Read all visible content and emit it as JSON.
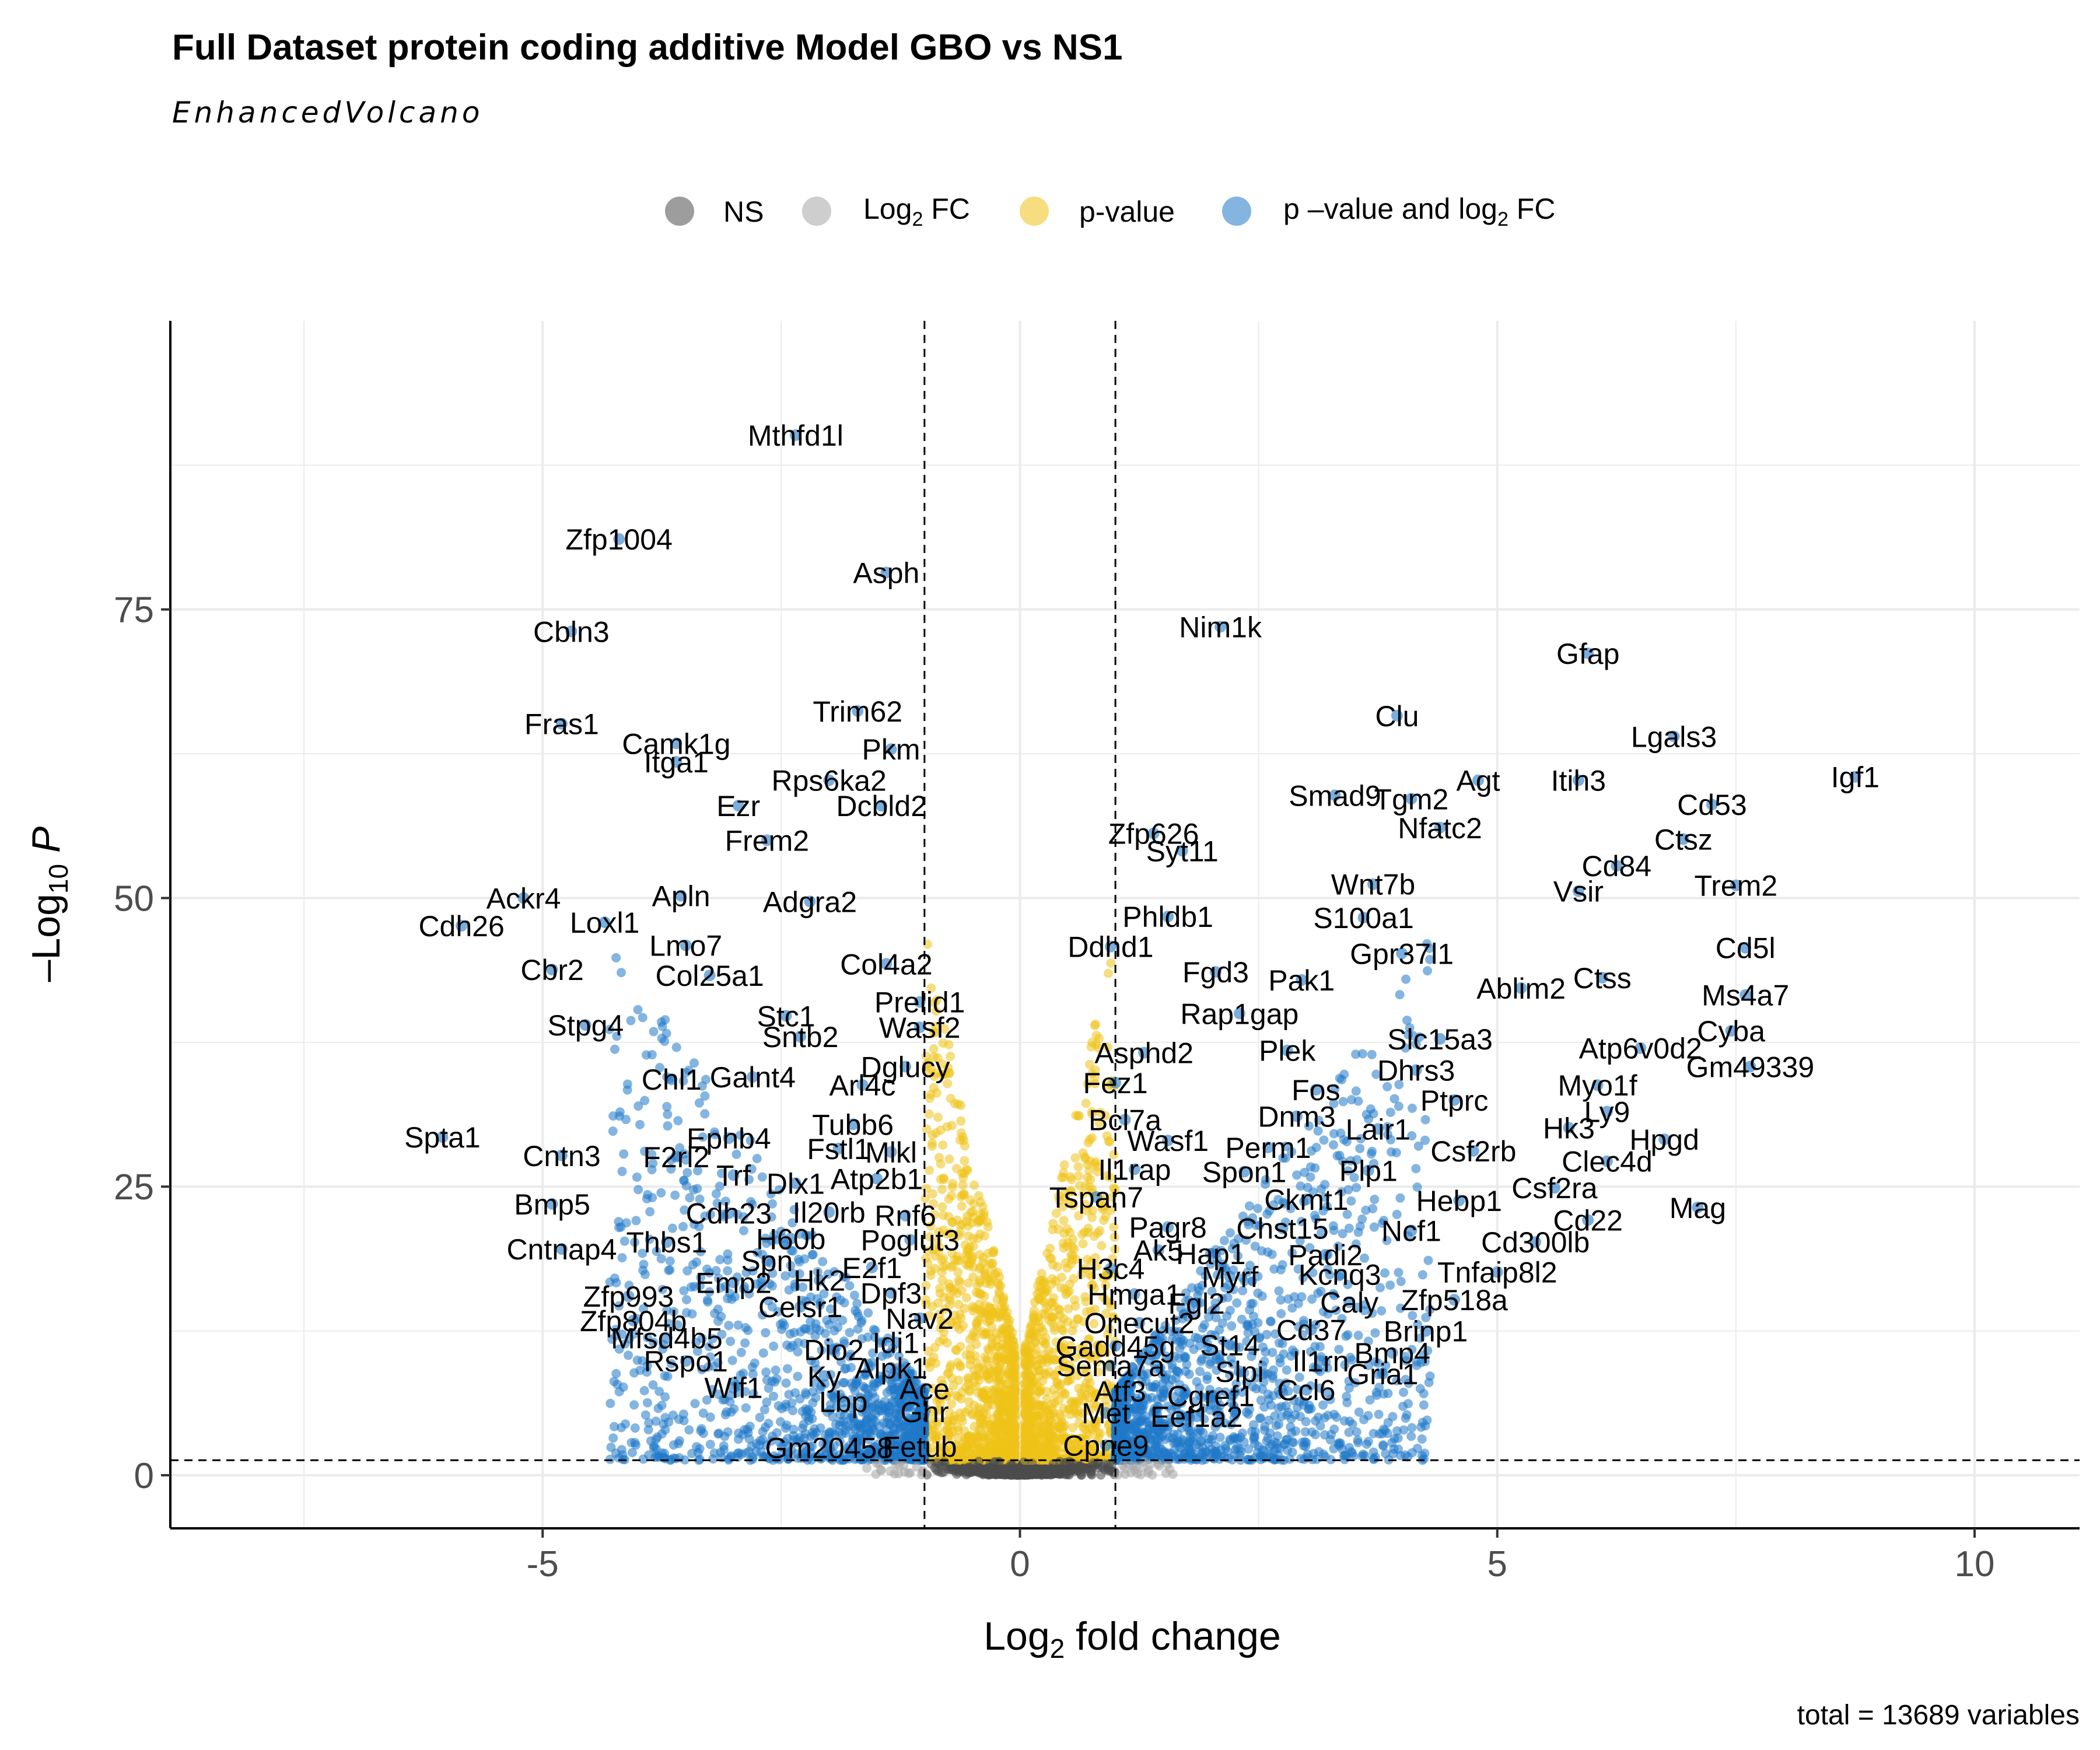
{
  "chart_data": {
    "type": "scatter",
    "title": "Full Dataset protein coding additive Model GBO vs NS1",
    "subtitle": "EnhancedVolcano",
    "xlabel": "Log2 fold change",
    "ylabel": "-Log10 P",
    "caption": "total = 13689 variables",
    "xlim": [
      -8.9,
      11.1
    ],
    "ylim": [
      -4.6,
      100
    ],
    "x_ticks": [
      -5,
      0,
      5,
      10
    ],
    "x_tick_labels": [
      "-5",
      "0",
      "5",
      "10"
    ],
    "y_ticks": [
      0,
      25,
      50,
      75
    ],
    "y_tick_labels": [
      "0",
      "25",
      "50",
      "75"
    ],
    "grid": true,
    "legend_position": "top",
    "fc_cutoff": 1,
    "p_cutoff_log10": 1.3,
    "legend": [
      {
        "label": "NS",
        "color": "#4d4d4d"
      },
      {
        "label": "Log2 FC",
        "color": "#a6a6a6"
      },
      {
        "label": "p-value",
        "color": "#eec218"
      },
      {
        "label": "p–value and log2 FC",
        "color": "#1f78c8"
      }
    ],
    "colors": {
      "ns": "#4d4d4d",
      "fc": "#a6a6a6",
      "p": "#eec218",
      "both": "#1f78c8"
    },
    "labeled_points": [
      {
        "label": "Mthfd1l",
        "x": -2.35,
        "y": 90.1
      },
      {
        "label": "Zfp1004",
        "x": -4.2,
        "y": 81.1
      },
      {
        "label": "Asph",
        "x": -1.4,
        "y": 78.2
      },
      {
        "label": "Cbln3",
        "x": -4.7,
        "y": 73.1
      },
      {
        "label": "Nim1k",
        "x": 2.1,
        "y": 73.5
      },
      {
        "label": "Gfap",
        "x": 5.95,
        "y": 71.2
      },
      {
        "label": "Fras1",
        "x": -4.8,
        "y": 65.1
      },
      {
        "label": "Trim62",
        "x": -1.7,
        "y": 66.2
      },
      {
        "label": "Clu",
        "x": 3.95,
        "y": 65.8
      },
      {
        "label": "Lgals3",
        "x": 6.85,
        "y": 64.0
      },
      {
        "label": "Camk1g",
        "x": -3.6,
        "y": 63.4
      },
      {
        "label": "Pkm",
        "x": -1.35,
        "y": 62.9
      },
      {
        "label": "Itga1",
        "x": -3.6,
        "y": 61.8
      },
      {
        "label": "Itih3",
        "x": 5.85,
        "y": 60.2
      },
      {
        "label": "Igf1",
        "x": 8.75,
        "y": 60.5
      },
      {
        "label": "Smad9",
        "x": 3.3,
        "y": 58.9
      },
      {
        "label": "Agt",
        "x": 4.8,
        "y": 60.2
      },
      {
        "label": "Rps6ka2",
        "x": -2.0,
        "y": 60.2
      },
      {
        "label": "Tgm2",
        "x": 4.1,
        "y": 58.6
      },
      {
        "label": "Cd53",
        "x": 7.25,
        "y": 58.1
      },
      {
        "label": "Ezr",
        "x": -2.95,
        "y": 58.0
      },
      {
        "label": "Dcbld2",
        "x": -1.45,
        "y": 58.0
      },
      {
        "label": "Zfp626",
        "x": 1.4,
        "y": 55.6
      },
      {
        "label": "Frem2",
        "x": -2.65,
        "y": 55.0
      },
      {
        "label": "Nfatc2",
        "x": 4.4,
        "y": 56.1
      },
      {
        "label": "Ctsz",
        "x": 6.95,
        "y": 55.1
      },
      {
        "label": "Syt11",
        "x": 1.7,
        "y": 54.1
      },
      {
        "label": "Cd84",
        "x": 6.25,
        "y": 52.8
      },
      {
        "label": "Wnt7b",
        "x": 3.7,
        "y": 51.2
      },
      {
        "label": "Vsir",
        "x": 5.85,
        "y": 50.6
      },
      {
        "label": "Trem2",
        "x": 7.5,
        "y": 51.1
      },
      {
        "label": "Apln",
        "x": -3.55,
        "y": 50.2
      },
      {
        "label": "Ackr4",
        "x": -5.2,
        "y": 50.0
      },
      {
        "label": "Adgra2",
        "x": -2.2,
        "y": 49.7
      },
      {
        "label": "Phldb1",
        "x": 1.55,
        "y": 48.4
      },
      {
        "label": "S100a1",
        "x": 3.6,
        "y": 48.3
      },
      {
        "label": "Loxl1",
        "x": -4.35,
        "y": 47.9
      },
      {
        "label": "Ddhd1",
        "x": 0.95,
        "y": 45.8
      },
      {
        "label": "Gpr37l1",
        "x": 4.0,
        "y": 45.2
      },
      {
        "label": "Cd5l",
        "x": 7.6,
        "y": 45.7
      },
      {
        "label": "Cdh26",
        "x": -5.85,
        "y": 47.6
      },
      {
        "label": "Lmo7",
        "x": -3.5,
        "y": 45.9
      },
      {
        "label": "Col4a2",
        "x": -1.4,
        "y": 44.3
      },
      {
        "label": "Fgd3",
        "x": 2.05,
        "y": 43.6
      },
      {
        "label": "Pak1",
        "x": 2.95,
        "y": 42.9
      },
      {
        "label": "Ctss",
        "x": 6.1,
        "y": 43.1
      },
      {
        "label": "Ms4a7",
        "x": 7.6,
        "y": 41.6
      },
      {
        "label": "Cbr2",
        "x": -4.9,
        "y": 43.8
      },
      {
        "label": "Col25a1",
        "x": -3.25,
        "y": 43.3
      },
      {
        "label": "Ablim2",
        "x": 5.25,
        "y": 42.2
      },
      {
        "label": "Prelid1",
        "x": -1.05,
        "y": 41.0
      },
      {
        "label": "Rap1gap",
        "x": 2.3,
        "y": 40.0
      },
      {
        "label": "Stpg4",
        "x": -4.55,
        "y": 39.0
      },
      {
        "label": "Stc1",
        "x": -2.45,
        "y": 39.8
      },
      {
        "label": "Cyba",
        "x": 7.45,
        "y": 38.5
      },
      {
        "label": "Wasf2",
        "x": -1.05,
        "y": 38.8
      },
      {
        "label": "Slc15a3",
        "x": 4.4,
        "y": 37.8
      },
      {
        "label": "Sntb2",
        "x": -2.3,
        "y": 38.0
      },
      {
        "label": "Asphd2",
        "x": 1.3,
        "y": 36.6
      },
      {
        "label": "Atp6v0d2",
        "x": 6.5,
        "y": 37.0
      },
      {
        "label": "Plek",
        "x": 2.8,
        "y": 36.8
      },
      {
        "label": "Dglucy",
        "x": -1.2,
        "y": 35.4
      },
      {
        "label": "Dhrs3",
        "x": 4.15,
        "y": 35.1
      },
      {
        "label": "Gm49339",
        "x": 7.65,
        "y": 35.4
      },
      {
        "label": "Chl1",
        "x": -3.65,
        "y": 34.3
      },
      {
        "label": "Galnt4",
        "x": -2.8,
        "y": 34.5
      },
      {
        "label": "Fez1",
        "x": 1.0,
        "y": 34.0
      },
      {
        "label": "Myo1f",
        "x": 6.05,
        "y": 33.8
      },
      {
        "label": "Fos",
        "x": 3.1,
        "y": 33.4
      },
      {
        "label": "Arl4c",
        "x": -1.65,
        "y": 33.8
      },
      {
        "label": "Ptprc",
        "x": 4.55,
        "y": 32.5
      },
      {
        "label": "Ly9",
        "x": 6.15,
        "y": 31.5
      },
      {
        "label": "Bcl7a",
        "x": 1.1,
        "y": 30.8
      },
      {
        "label": "Dnm3",
        "x": 2.9,
        "y": 31.1
      },
      {
        "label": "Tubb6",
        "x": -1.75,
        "y": 30.4
      },
      {
        "label": "Lair1",
        "x": 3.75,
        "y": 30.0
      },
      {
        "label": "Hk3",
        "x": 5.75,
        "y": 30.1
      },
      {
        "label": "Spta1",
        "x": -6.05,
        "y": 29.3
      },
      {
        "label": "Ephb4",
        "x": -3.05,
        "y": 29.2
      },
      {
        "label": "Hpgd",
        "x": 6.75,
        "y": 29.1
      },
      {
        "label": "Wasf1",
        "x": 1.55,
        "y": 29.0
      },
      {
        "label": "Perm1",
        "x": 2.6,
        "y": 28.4
      },
      {
        "label": "Fstl1",
        "x": -1.9,
        "y": 28.3
      },
      {
        "label": "Mlkl",
        "x": -1.35,
        "y": 28.0
      },
      {
        "label": "Csf2rb",
        "x": 4.75,
        "y": 28.1
      },
      {
        "label": "Cntn3",
        "x": -4.8,
        "y": 27.7
      },
      {
        "label": "F2rl2",
        "x": -3.6,
        "y": 27.6
      },
      {
        "label": "Clec4d",
        "x": 6.15,
        "y": 27.2
      },
      {
        "label": "Il1rap",
        "x": 1.2,
        "y": 26.5
      },
      {
        "label": "Spon1",
        "x": 2.35,
        "y": 26.3
      },
      {
        "label": "Plp1",
        "x": 3.65,
        "y": 26.4
      },
      {
        "label": "Trf",
        "x": -3.0,
        "y": 26.0
      },
      {
        "label": "Atp2b1",
        "x": -1.5,
        "y": 25.7
      },
      {
        "label": "Dlx1",
        "x": -2.35,
        "y": 25.3
      },
      {
        "label": "Csf2ra",
        "x": 5.6,
        "y": 24.9
      },
      {
        "label": "Tspan7",
        "x": 0.8,
        "y": 24.1
      },
      {
        "label": "Ckmt1",
        "x": 3.0,
        "y": 23.9
      },
      {
        "label": "Hebp1",
        "x": 4.6,
        "y": 23.8
      },
      {
        "label": "Bmp5",
        "x": -4.9,
        "y": 23.5
      },
      {
        "label": "Il20rb",
        "x": -2.0,
        "y": 22.8
      },
      {
        "label": "Rnf6",
        "x": -1.2,
        "y": 22.5
      },
      {
        "label": "Cdh23",
        "x": -3.05,
        "y": 22.7
      },
      {
        "label": "Mag",
        "x": 7.1,
        "y": 23.2
      },
      {
        "label": "Cd22",
        "x": 5.95,
        "y": 22.1
      },
      {
        "label": "Pagr8",
        "x": 1.55,
        "y": 21.5
      },
      {
        "label": "Chst15",
        "x": 2.75,
        "y": 21.4
      },
      {
        "label": "Ncf1",
        "x": 4.1,
        "y": 21.2
      },
      {
        "label": "H60b",
        "x": -2.4,
        "y": 20.5
      },
      {
        "label": "Thbs1",
        "x": -3.7,
        "y": 20.2
      },
      {
        "label": "Poglut3",
        "x": -1.15,
        "y": 20.4
      },
      {
        "label": "Cd300lb",
        "x": 5.4,
        "y": 20.2
      },
      {
        "label": "Cntnap4",
        "x": -4.8,
        "y": 19.6
      },
      {
        "label": "Ak5",
        "x": 1.45,
        "y": 19.5
      },
      {
        "label": "Hap1",
        "x": 2.0,
        "y": 19.2
      },
      {
        "label": "Padi2",
        "x": 3.2,
        "y": 19.1
      },
      {
        "label": "Spn",
        "x": -2.65,
        "y": 18.6
      },
      {
        "label": "E2f1",
        "x": -1.55,
        "y": 18.0
      },
      {
        "label": "H3c4",
        "x": 0.95,
        "y": 17.9
      },
      {
        "label": "Kcnq3",
        "x": 3.35,
        "y": 17.4
      },
      {
        "label": "Tnfaip8l2",
        "x": 5.0,
        "y": 17.6
      },
      {
        "label": "Myrf",
        "x": 2.2,
        "y": 17.2
      },
      {
        "label": "Emp2",
        "x": -3.0,
        "y": 16.7
      },
      {
        "label": "Hk2",
        "x": -2.1,
        "y": 16.9
      },
      {
        "label": "Hmga1",
        "x": 1.2,
        "y": 15.7
      },
      {
        "label": "Dpf3",
        "x": -1.35,
        "y": 15.8
      },
      {
        "label": "Zfp993",
        "x": -4.1,
        "y": 15.5
      },
      {
        "label": "Fgl2",
        "x": 1.85,
        "y": 14.9
      },
      {
        "label": "Caly",
        "x": 3.45,
        "y": 15.0
      },
      {
        "label": "Zfp518a",
        "x": 4.55,
        "y": 15.2
      },
      {
        "label": "Celsr1",
        "x": -2.3,
        "y": 14.6
      },
      {
        "label": "Nav2",
        "x": -1.05,
        "y": 13.6
      },
      {
        "label": "Zfp804b",
        "x": -4.05,
        "y": 13.4
      },
      {
        "label": "Onecut2",
        "x": 1.25,
        "y": 13.2
      },
      {
        "label": "Cd37",
        "x": 3.05,
        "y": 12.6
      },
      {
        "label": "Brinp1",
        "x": 4.25,
        "y": 12.5
      },
      {
        "label": "Mfsd4b5",
        "x": -3.7,
        "y": 11.9
      },
      {
        "label": "Idi1",
        "x": -1.3,
        "y": 11.5
      },
      {
        "label": "Gadd45g",
        "x": 1.0,
        "y": 11.2
      },
      {
        "label": "St14",
        "x": 2.2,
        "y": 11.3
      },
      {
        "label": "Dio2",
        "x": -1.95,
        "y": 10.9
      },
      {
        "label": "Bmp4",
        "x": 3.9,
        "y": 10.6
      },
      {
        "label": "Rspo1",
        "x": -3.5,
        "y": 9.9
      },
      {
        "label": "Il1rn",
        "x": 3.15,
        "y": 9.9
      },
      {
        "label": "Sema7a",
        "x": 0.95,
        "y": 9.5
      },
      {
        "label": "Alpk1",
        "x": -1.35,
        "y": 9.3
      },
      {
        "label": "Slpi",
        "x": 2.3,
        "y": 9.0
      },
      {
        "label": "Ky",
        "x": -2.05,
        "y": 8.6
      },
      {
        "label": "Gria1",
        "x": 3.8,
        "y": 8.8
      },
      {
        "label": "Wif1",
        "x": -3.0,
        "y": 7.6
      },
      {
        "label": "Atf3",
        "x": 1.05,
        "y": 7.3
      },
      {
        "label": "Ace",
        "x": -1.0,
        "y": 7.5
      },
      {
        "label": "Ccl6",
        "x": 3.0,
        "y": 7.4
      },
      {
        "label": "Cgref1",
        "x": 2.0,
        "y": 6.9
      },
      {
        "label": "Lbp",
        "x": -1.85,
        "y": 6.4
      },
      {
        "label": "Met",
        "x": 0.9,
        "y": 5.4
      },
      {
        "label": "Ghr",
        "x": -1.0,
        "y": 5.5
      },
      {
        "label": "Eef1a2",
        "x": 1.85,
        "y": 5.1
      },
      {
        "label": "Gm20458",
        "x": -2.0,
        "y": 2.4
      },
      {
        "label": "Fetub",
        "x": -1.05,
        "y": 2.5
      },
      {
        "label": "Cpne9",
        "x": 0.9,
        "y": 2.6
      }
    ]
  }
}
